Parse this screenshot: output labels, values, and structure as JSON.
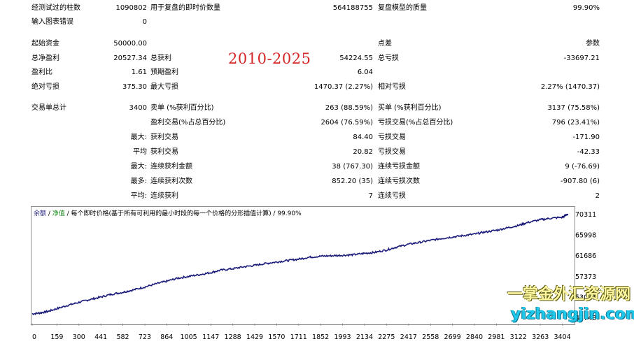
{
  "report": {
    "bars_tested": {
      "label": "经测试过的柱数",
      "value": "1090802"
    },
    "ticks_modelled": {
      "label": "用于复盘的即时价数量",
      "value": "564188755"
    },
    "modelling_quality": {
      "label": "复盘模型的质量",
      "value": "99.90%"
    },
    "chart_errors": {
      "label": "输入图表错误",
      "value": "0"
    },
    "initial_deposit": {
      "label": "起始资金",
      "value": "50000.00"
    },
    "spread": {
      "label": "点差",
      "value": "参数"
    },
    "total_net_profit": {
      "label": "总净盈利",
      "value": "20527.34"
    },
    "gross_profit": {
      "label": "总获利",
      "value": "54224.55"
    },
    "gross_loss": {
      "label": "总亏损",
      "value": "-33697.21"
    },
    "profit_factor": {
      "label": "盈利比",
      "value": "1.61"
    },
    "expected_payoff": {
      "label": "预期盈利",
      "value": "6.04"
    },
    "absolute_drawdown": {
      "label": "绝对亏损",
      "value": "375.30"
    },
    "maximal_drawdown": {
      "label": "最大亏损",
      "value": "1470.37 (2.27%)"
    },
    "relative_drawdown": {
      "label": "相对亏损",
      "value": "2.27% (1470.37)"
    },
    "total_trades": {
      "label": "交易单总计",
      "value": "3400"
    },
    "short_positions": {
      "label": "卖单 (%获利百分比)",
      "value": "263 (88.59%)"
    },
    "long_positions": {
      "label": "买单 (%获利百分比)",
      "value": "3137 (75.58%)"
    },
    "profit_trades": {
      "label": "盈利交易(%占总百分比)",
      "value": "2604 (76.59%)"
    },
    "loss_trades": {
      "label": "亏损交易(%占总百分比)",
      "value": "796 (23.41%)"
    },
    "largest": {
      "prefix": "最大:",
      "profit_label": "获利交易",
      "profit_value": "84.40",
      "loss_label": "亏损交易",
      "loss_value": "-171.90"
    },
    "average": {
      "prefix": "平均",
      "profit_label": "获利交易",
      "profit_value": "20.82",
      "loss_label": "亏损交易",
      "loss_value": "-42.33"
    },
    "max_consecutive": {
      "prefix": "最大:",
      "win_label": "连续获利金额",
      "win_value": "38 (767.30)",
      "loss_label": "连续亏损金额",
      "loss_value": "9 (-76.69)"
    },
    "max_consecutive_amount": {
      "prefix": "最多:",
      "win_label": "连续获利次数",
      "win_value": "852.20 (35)",
      "loss_label": "连续亏损次数",
      "loss_value": "-907.80 (6)"
    },
    "avg_consecutive": {
      "prefix": "平均:",
      "win_label": "连续获利",
      "win_value": "7",
      "loss_label": "连续亏损",
      "loss_value": "2"
    }
  },
  "overlay_text": "2010-2025",
  "chart_legend": {
    "balance": "余额",
    "sep1": " / ",
    "equity": "净值",
    "rest": " / 每个即时价格(基于所有可利用的最小时段的每一个价格的分形插值计算) / 99.90%"
  },
  "watermark": {
    "line1": "一掌金外汇资源网",
    "line2": "yizhangjin.com"
  },
  "chart_data": {
    "type": "line",
    "x_ticks": [
      "0",
      "159",
      "300",
      "441",
      "582",
      "723",
      "864",
      "1005",
      "1147",
      "1288",
      "1429",
      "1570",
      "1711",
      "1852",
      "1993",
      "2134",
      "2275",
      "2417",
      "2558",
      "2699",
      "2840",
      "2981",
      "3122",
      "3263",
      "3404"
    ],
    "y_ticks": [
      "70311",
      "65998",
      "61686",
      "57373",
      "53061",
      "48748"
    ],
    "xlim": [
      0,
      3460
    ],
    "ylim": [
      47600,
      71600
    ],
    "color": "#1b1b7a",
    "series": [
      {
        "x": [
          0,
          50,
          100,
          159,
          230,
          300,
          370,
          441,
          510,
          582,
          650,
          723,
          800,
          864,
          930,
          1005,
          1080,
          1147,
          1210,
          1288,
          1360,
          1429,
          1500,
          1570,
          1640,
          1711,
          1780,
          1852,
          1920,
          1993,
          2060,
          2134,
          2200,
          2275,
          2340,
          2417,
          2490,
          2558,
          2630,
          2699,
          2770,
          2840,
          2900,
          2981,
          3050,
          3122,
          3180,
          3263,
          3330,
          3404,
          3440
        ],
        "y": [
          49500,
          49700,
          50000,
          50600,
          51300,
          51900,
          52500,
          53000,
          53600,
          54000,
          54500,
          55100,
          55800,
          56300,
          56900,
          57300,
          57700,
          58100,
          58600,
          58900,
          59300,
          59600,
          60000,
          60300,
          60600,
          60900,
          61300,
          61500,
          61600,
          61700,
          61800,
          62100,
          62300,
          62800,
          63400,
          64000,
          64400,
          64800,
          65200,
          65500,
          65800,
          66100,
          66500,
          66900,
          67400,
          67900,
          68500,
          69100,
          69400,
          69600,
          70300
        ]
      }
    ]
  }
}
